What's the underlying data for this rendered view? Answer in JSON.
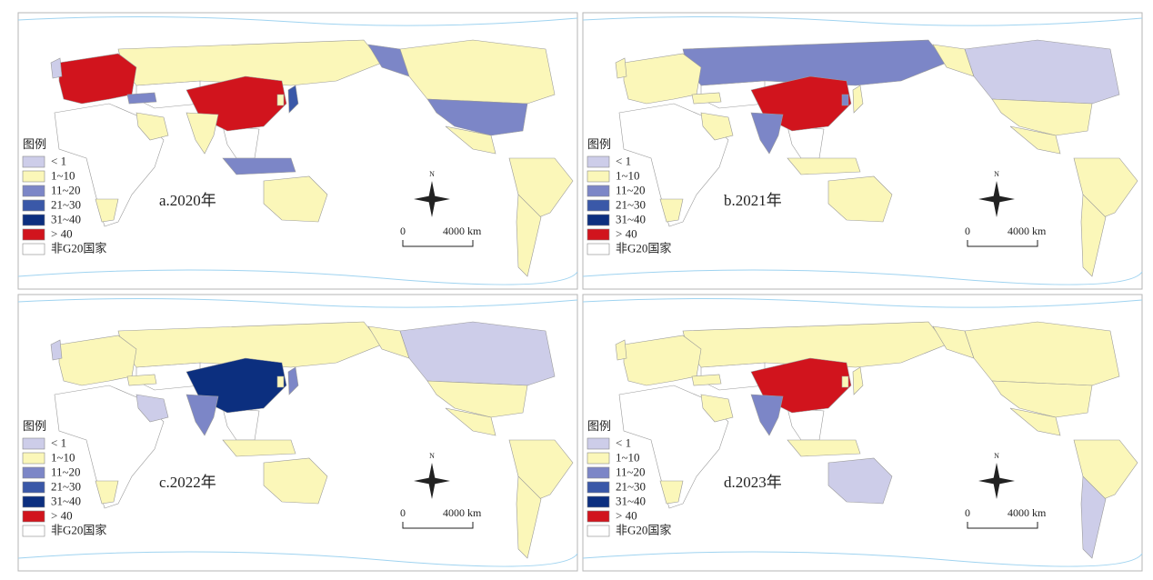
{
  "legend": {
    "title": "图例",
    "items": [
      {
        "label": "< 1",
        "color": "#cdcde9"
      },
      {
        "label": "1~10",
        "color": "#fbf7b9"
      },
      {
        "label": "11~20",
        "color": "#7c86c7"
      },
      {
        "label": "21~30",
        "color": "#3a58a8"
      },
      {
        "label": "31~40",
        "color": "#0c2f7f"
      },
      {
        "label": "> 40",
        "color": "#d1141d"
      },
      {
        "label": "非G20国家",
        "color": "#ffffff"
      }
    ]
  },
  "panels": [
    {
      "label": "a.2020年"
    },
    {
      "label": "b.2021年"
    },
    {
      "label": "c.2022年"
    },
    {
      "label": "d.2023年"
    }
  ],
  "north": "N",
  "scale": {
    "start": "0",
    "end": "4000 km"
  }
}
